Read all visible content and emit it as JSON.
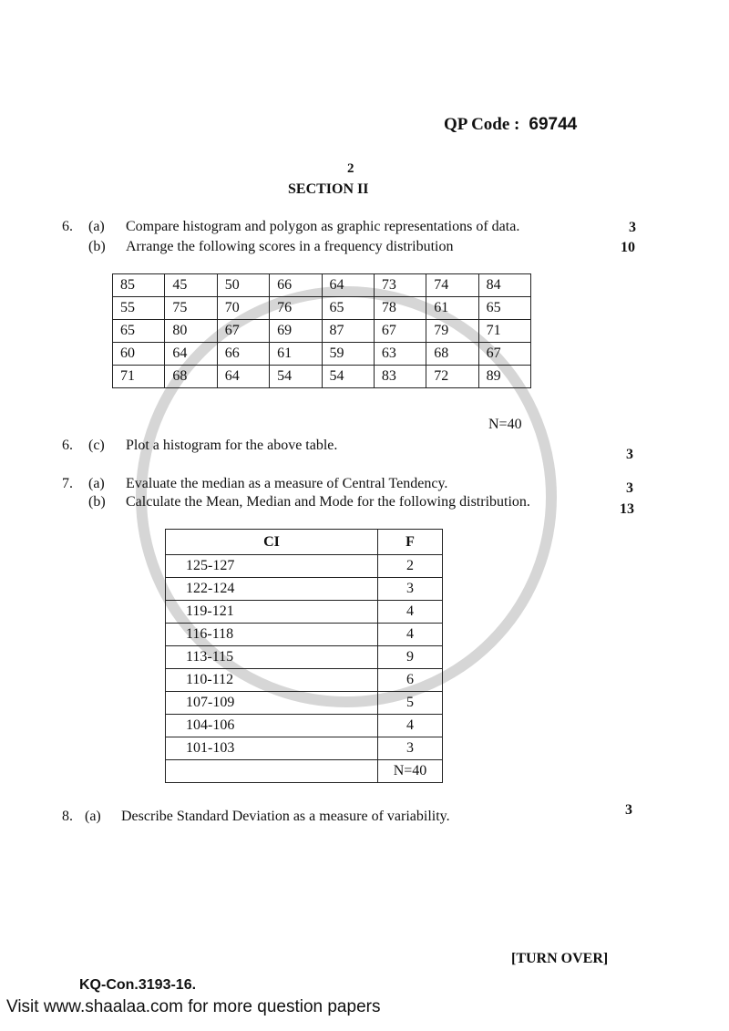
{
  "header": {
    "qp_code_label": "QP Code :",
    "qp_code": "69744",
    "page_number": "2",
    "section": "SECTION II"
  },
  "questions": [
    {
      "num": "6.",
      "part": "(a)",
      "text": "Compare histogram and polygon as graphic representations of data.",
      "marks": "3"
    },
    {
      "num": "",
      "part": "(b)",
      "text": "Arrange the following scores in a frequency distribution",
      "marks": "10"
    },
    {
      "num": "6.",
      "part": "(c)",
      "text": "Plot a histogram for the above table.",
      "marks": "3"
    },
    {
      "num": "7.",
      "part": "(a)",
      "text": "Evaluate the median as a measure of Central Tendency.",
      "marks": "3"
    },
    {
      "num": "",
      "part": "(b)",
      "text": "Calculate the Mean, Median and Mode for the following distribution.",
      "marks": "13"
    },
    {
      "num": "8.",
      "part": "(a)",
      "text": "Describe Standard Deviation as a measure of variability.",
      "marks": "3"
    }
  ],
  "scores_table": {
    "rows": [
      [
        "85",
        "45",
        "50",
        "66",
        "64",
        "73",
        "74",
        "84"
      ],
      [
        "55",
        "75",
        "70",
        "76",
        "65",
        "78",
        "61",
        "65"
      ],
      [
        "65",
        "80",
        "67",
        "69",
        "87",
        "67",
        "79",
        "71"
      ],
      [
        "60",
        "64",
        "66",
        "61",
        "59",
        "63",
        "68",
        "67"
      ],
      [
        "71",
        "68",
        "64",
        "54",
        "54",
        "83",
        "72",
        "89"
      ]
    ],
    "total": "N=40"
  },
  "distribution_table": {
    "headers": [
      "CI",
      "F"
    ],
    "rows": [
      [
        "125-127",
        "2"
      ],
      [
        "122-124",
        "3"
      ],
      [
        "119-121",
        "4"
      ],
      [
        "116-118",
        "4"
      ],
      [
        "113-115",
        "9"
      ],
      [
        "110-112",
        "6"
      ],
      [
        "107-109",
        "5"
      ],
      [
        "104-106",
        "4"
      ],
      [
        "101-103",
        "3"
      ]
    ],
    "total": "N=40"
  },
  "footer": {
    "turn_over": "[TURN OVER]",
    "code": "KQ-Con.3193-16.",
    "visit": "Visit www.shaalaa.com for more question papers"
  },
  "watermark": "shaalaa.com"
}
